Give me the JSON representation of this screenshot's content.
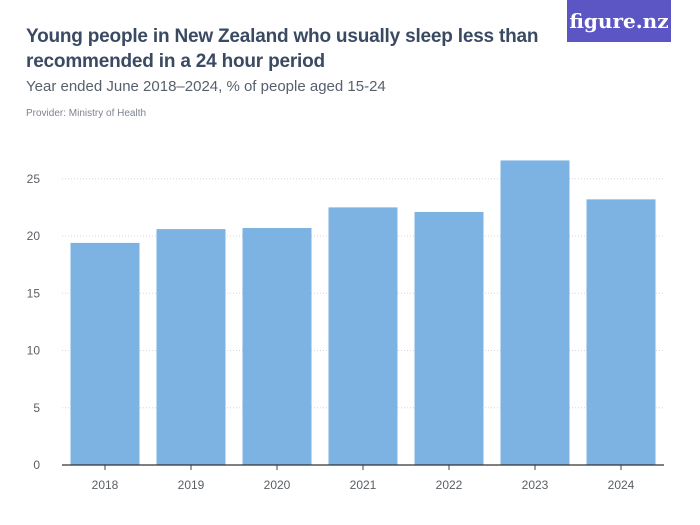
{
  "header": {
    "title": "Young people in New Zealand who usually sleep less than recommended in a 24 hour period",
    "subtitle": "Year ended June 2018–2024, % of people aged 15-24",
    "provider": "Provider: Ministry of Health",
    "logo_text": "figure.nz"
  },
  "colors": {
    "bar": "#7db3e3",
    "logo_bg": "#5b56c4",
    "title": "#3b4a63"
  },
  "chart_data": {
    "type": "bar",
    "categories": [
      "2018",
      "2019",
      "2020",
      "2021",
      "2022",
      "2023",
      "2024"
    ],
    "values": [
      19.4,
      20.6,
      20.7,
      22.5,
      22.1,
      26.6,
      23.2
    ],
    "title": "Young people in New Zealand who usually sleep less than recommended in a 24 hour period",
    "subtitle": "Year ended June 2018–2024, % of people aged 15-24",
    "xlabel": "",
    "ylabel": "",
    "ylim": [
      0,
      25
    ],
    "yticks": [
      0,
      5,
      10,
      15,
      20,
      25
    ],
    "grid": true,
    "legend": "none"
  }
}
